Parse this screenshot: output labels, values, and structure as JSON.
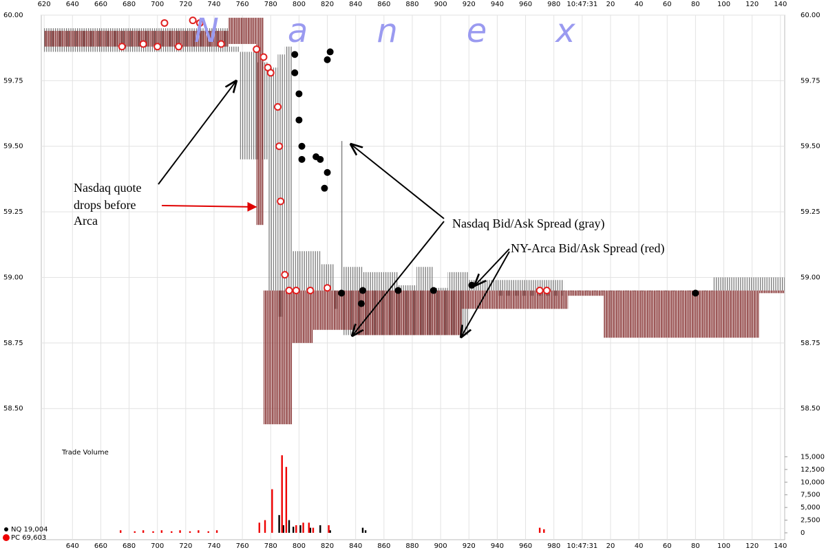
{
  "chart_data": [
    {
      "type": "spread",
      "watermark": "Nanex",
      "ylim": [
        58.38,
        60.0
      ],
      "yticks": [
        {
          "value": 58.5,
          "label": "58.50"
        },
        {
          "value": 58.75,
          "label": "58.75"
        },
        {
          "value": 59.0,
          "label": "59.00"
        },
        {
          "value": 59.25,
          "label": "59.25"
        },
        {
          "value": 59.5,
          "label": "59.50"
        },
        {
          "value": 59.75,
          "label": "59.75"
        },
        {
          "value": 60.0,
          "label": "60.00"
        }
      ],
      "xlim": [
        618,
        1143
      ],
      "xticks": [
        620,
        640,
        660,
        680,
        700,
        720,
        740,
        760,
        780,
        800,
        820,
        840,
        860,
        880,
        900,
        920,
        940,
        960,
        980,
        {
          "value": 1000,
          "label": "10:47:31"
        },
        {
          "value": 1020,
          "label": "20"
        },
        {
          "value": 1040,
          "label": "40"
        },
        {
          "value": 1060,
          "label": "60"
        },
        {
          "value": 1080,
          "label": "80"
        },
        {
          "value": 1100,
          "label": "100"
        },
        {
          "value": 1120,
          "label": "120"
        },
        {
          "value": 1140,
          "label": "140"
        }
      ],
      "grid": true,
      "series": [
        {
          "color": "#707070",
          "x": [
            620,
            750,
            758,
            770,
            778,
            785,
            790,
            795,
            815,
            825,
            829,
            831,
            845,
            870,
            883,
            895,
            905,
            920,
            940,
            987,
            1092
          ],
          "bid": [
            59.86,
            59.86,
            59.45,
            59.45,
            58.95,
            58.85,
            58.95,
            58.95,
            58.95,
            58.88,
            58.95,
            58.78,
            58.78,
            58.78,
            58.78,
            58.78,
            58.78,
            58.95,
            58.93,
            58.95,
            58.95
          ],
          "ask": [
            59.95,
            59.88,
            59.86,
            59.82,
            59.8,
            59.85,
            59.88,
            59.1,
            59.05,
            58.95,
            59.52,
            59.04,
            59.02,
            58.97,
            59.04,
            58.96,
            59.02,
            58.99,
            58.99,
            58.95,
            59.0
          ]
        },
        {
          "color": "#8b3a3a",
          "x": [
            620,
            750,
            770,
            775,
            795,
            810,
            840,
            915,
            990,
            1015,
            1125
          ],
          "bid": [
            59.88,
            59.89,
            59.2,
            58.44,
            58.75,
            58.8,
            58.78,
            58.88,
            58.93,
            58.77,
            58.94
          ],
          "ask": [
            59.94,
            59.99,
            59.99,
            58.95,
            58.95,
            58.95,
            58.95,
            58.95,
            58.95,
            58.95,
            58.95
          ]
        }
      ],
      "trades": [
        {
          "color": "#000000",
          "x": [
            797,
            797,
            800,
            800,
            802,
            802,
            812,
            815,
            820,
            818,
            820,
            822,
            830,
            844,
            845,
            870,
            895,
            922,
            1080
          ],
          "values": [
            59.85,
            59.78,
            59.7,
            59.6,
            59.5,
            59.45,
            59.46,
            59.45,
            59.4,
            59.34,
            59.83,
            59.86,
            58.94,
            58.9,
            58.95,
            58.95,
            58.95,
            58.97,
            58.94
          ]
        },
        {
          "color": "#e02020",
          "x": [
            675,
            690,
            700,
            715,
            705,
            725,
            730,
            745,
            770,
            775,
            778,
            780,
            785,
            786,
            787,
            790,
            793,
            798,
            808,
            820,
            970,
            975
          ],
          "values": [
            59.88,
            59.89,
            59.88,
            59.88,
            59.97,
            59.98,
            59.97,
            59.89,
            59.87,
            59.84,
            59.8,
            59.78,
            59.65,
            59.5,
            59.29,
            59.01,
            58.95,
            58.95,
            58.95,
            58.96,
            58.95,
            58.95
          ]
        }
      ],
      "annotations": [
        "Nasdaq quote",
        "drops before",
        "Arca",
        "Nasdaq Bid/Ask Spread (gray)",
        "NY-Arca Bid/Ask Spread (red)"
      ]
    },
    {
      "type": "volume",
      "title": "Trade Volume",
      "ylim": [
        0,
        17500
      ],
      "yticks": [
        0,
        {
          "value": 2500,
          "label": "2,500"
        },
        {
          "value": 5000,
          "label": "5,000"
        },
        {
          "value": 7500,
          "label": "7,500"
        },
        {
          "value": 10000,
          "label": "10,000"
        },
        {
          "value": 12500,
          "label": "12,500"
        },
        {
          "value": 15000,
          "label": "15,000"
        }
      ],
      "xlim": [
        618,
        1143
      ],
      "xticks": [
        640,
        660,
        680,
        700,
        720,
        740,
        760,
        780,
        800,
        820,
        840,
        860,
        880,
        900,
        920,
        940,
        960,
        980,
        {
          "value": 1000,
          "label": "10:47:31"
        },
        {
          "value": 1020,
          "label": "20"
        },
        {
          "value": 1040,
          "label": "40"
        },
        {
          "value": 1060,
          "label": "60"
        },
        {
          "value": 1080,
          "label": "80"
        },
        {
          "value": 1100,
          "label": "100"
        },
        {
          "value": 1120,
          "label": "120"
        },
        {
          "value": 1140,
          "label": "140"
        }
      ],
      "series": [
        {
          "name": "NQ 19,004",
          "color": "#000000",
          "x": [
            786,
            789,
            793,
            796,
            801,
            808,
            815,
            822,
            845,
            847
          ],
          "values": [
            3500,
            1500,
            2500,
            1200,
            1500,
            1000,
            1500,
            500,
            1000,
            500
          ]
        },
        {
          "name": "PC 69,603",
          "color": "#ee0000",
          "x": [
            674,
            684,
            690,
            697,
            703,
            710,
            716,
            723,
            729,
            736,
            742,
            772,
            776,
            781,
            788,
            791,
            798,
            803,
            807,
            810,
            821,
            970,
            973
          ],
          "values": [
            500,
            300,
            500,
            300,
            500,
            300,
            500,
            300,
            500,
            300,
            500,
            2000,
            2500,
            8600,
            15300,
            13000,
            1500,
            2000,
            2000,
            1000,
            1500,
            1000,
            700
          ]
        }
      ]
    }
  ]
}
